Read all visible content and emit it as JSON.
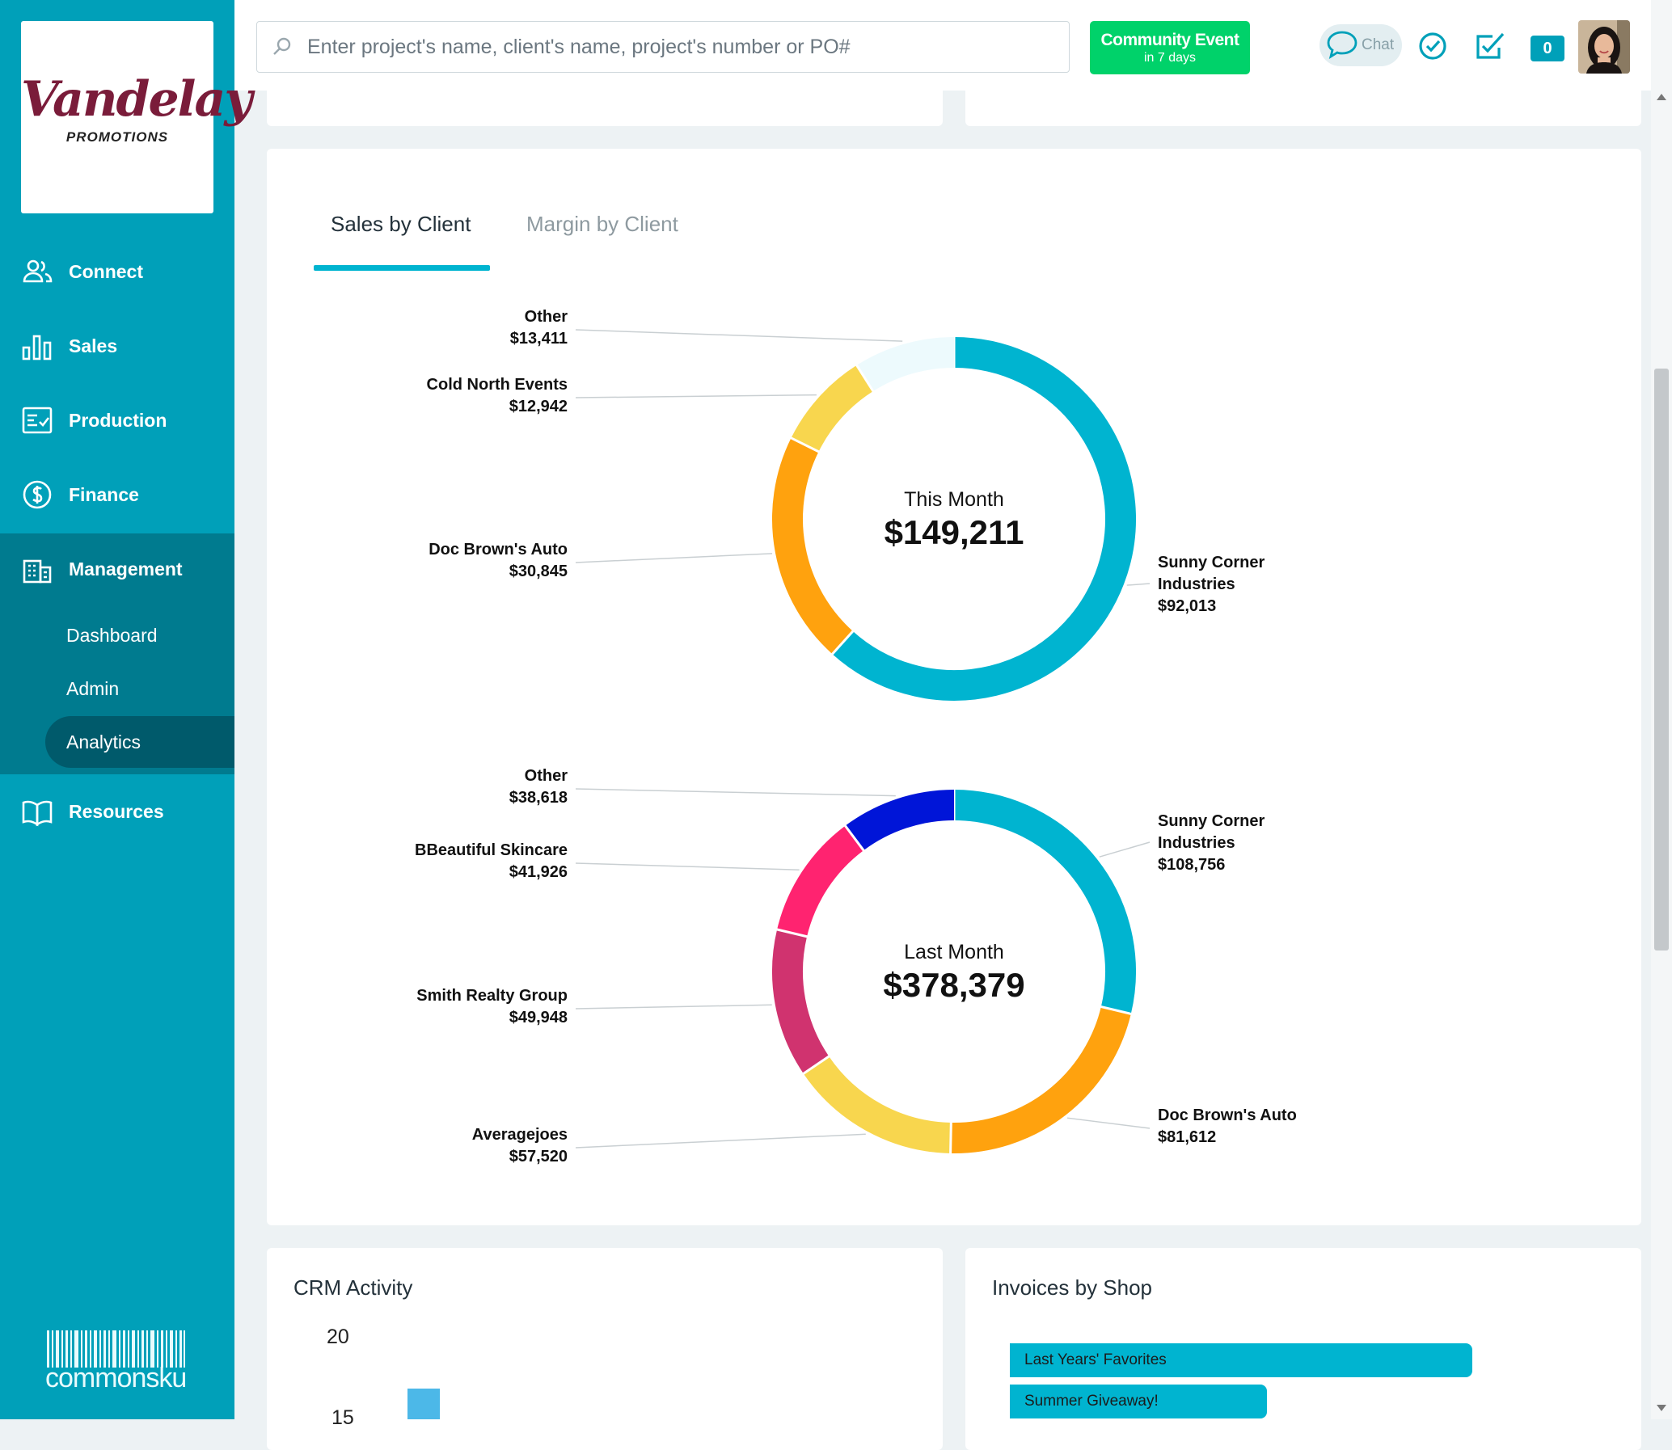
{
  "brand": {
    "name": "Vandelay",
    "tagline": "PROMOTIONS",
    "platform": "commonsku"
  },
  "sidebar": {
    "items": [
      {
        "label": "Connect",
        "icon": "people-icon"
      },
      {
        "label": "Sales",
        "icon": "bar-chart-icon"
      },
      {
        "label": "Production",
        "icon": "checklist-icon"
      },
      {
        "label": "Finance",
        "icon": "dollar-icon"
      },
      {
        "label": "Management",
        "icon": "building-icon"
      },
      {
        "label": "Resources",
        "icon": "book-icon"
      }
    ],
    "submenu": [
      "Dashboard",
      "Admin",
      "Analytics"
    ],
    "active_submenu": "Analytics"
  },
  "header": {
    "search_placeholder": "Enter project's name, client's name, project's number or PO#",
    "event_title": "Community Event",
    "event_subtitle": "in 7 days",
    "chat_label": "Chat",
    "notification_count": "0"
  },
  "tabs": [
    "Sales by Client",
    "Margin by Client"
  ],
  "active_tab": "Sales by Client",
  "chart_data": [
    {
      "type": "pie",
      "title": "This Month",
      "total": "$149,211",
      "slices": [
        {
          "label": "Sunny Corner Industries",
          "value": 92013,
          "display": "$92,013",
          "color": "#00b4d0"
        },
        {
          "label": "Doc Brown's Auto",
          "value": 30845,
          "display": "$30,845",
          "color": "#ffa20e"
        },
        {
          "label": "Cold North Events",
          "value": 12942,
          "display": "$12,942",
          "color": "#f8d64e"
        },
        {
          "label": "Other",
          "value": 13411,
          "display": "$13,411",
          "color": "#edfafd"
        }
      ]
    },
    {
      "type": "pie",
      "title": "Last Month",
      "total": "$378,379",
      "slices": [
        {
          "label": "Sunny Corner Industries",
          "value": 108756,
          "display": "$108,756",
          "color": "#00b4d0"
        },
        {
          "label": "Doc Brown's Auto",
          "value": 81612,
          "display": "$81,612",
          "color": "#ffa20e"
        },
        {
          "label": "Averagejoes",
          "value": 57520,
          "display": "$57,520",
          "color": "#f8d64e"
        },
        {
          "label": "Smith Realty Group",
          "value": 49948,
          "display": "$49,948",
          "color": "#d0336f"
        },
        {
          "label": "BBeautiful Skincare",
          "value": 41926,
          "display": "$41,926",
          "color": "#ff2370"
        },
        {
          "label": "Other",
          "value": 38618,
          "display": "$38,618",
          "color": "#0015d8"
        }
      ]
    }
  ],
  "crm": {
    "title": "CRM Activity",
    "ticks": [
      "20",
      "15"
    ]
  },
  "invoices": {
    "title": "Invoices by Shop",
    "shops": [
      "Last Years' Favorites",
      "Summer Giveaway!"
    ]
  }
}
